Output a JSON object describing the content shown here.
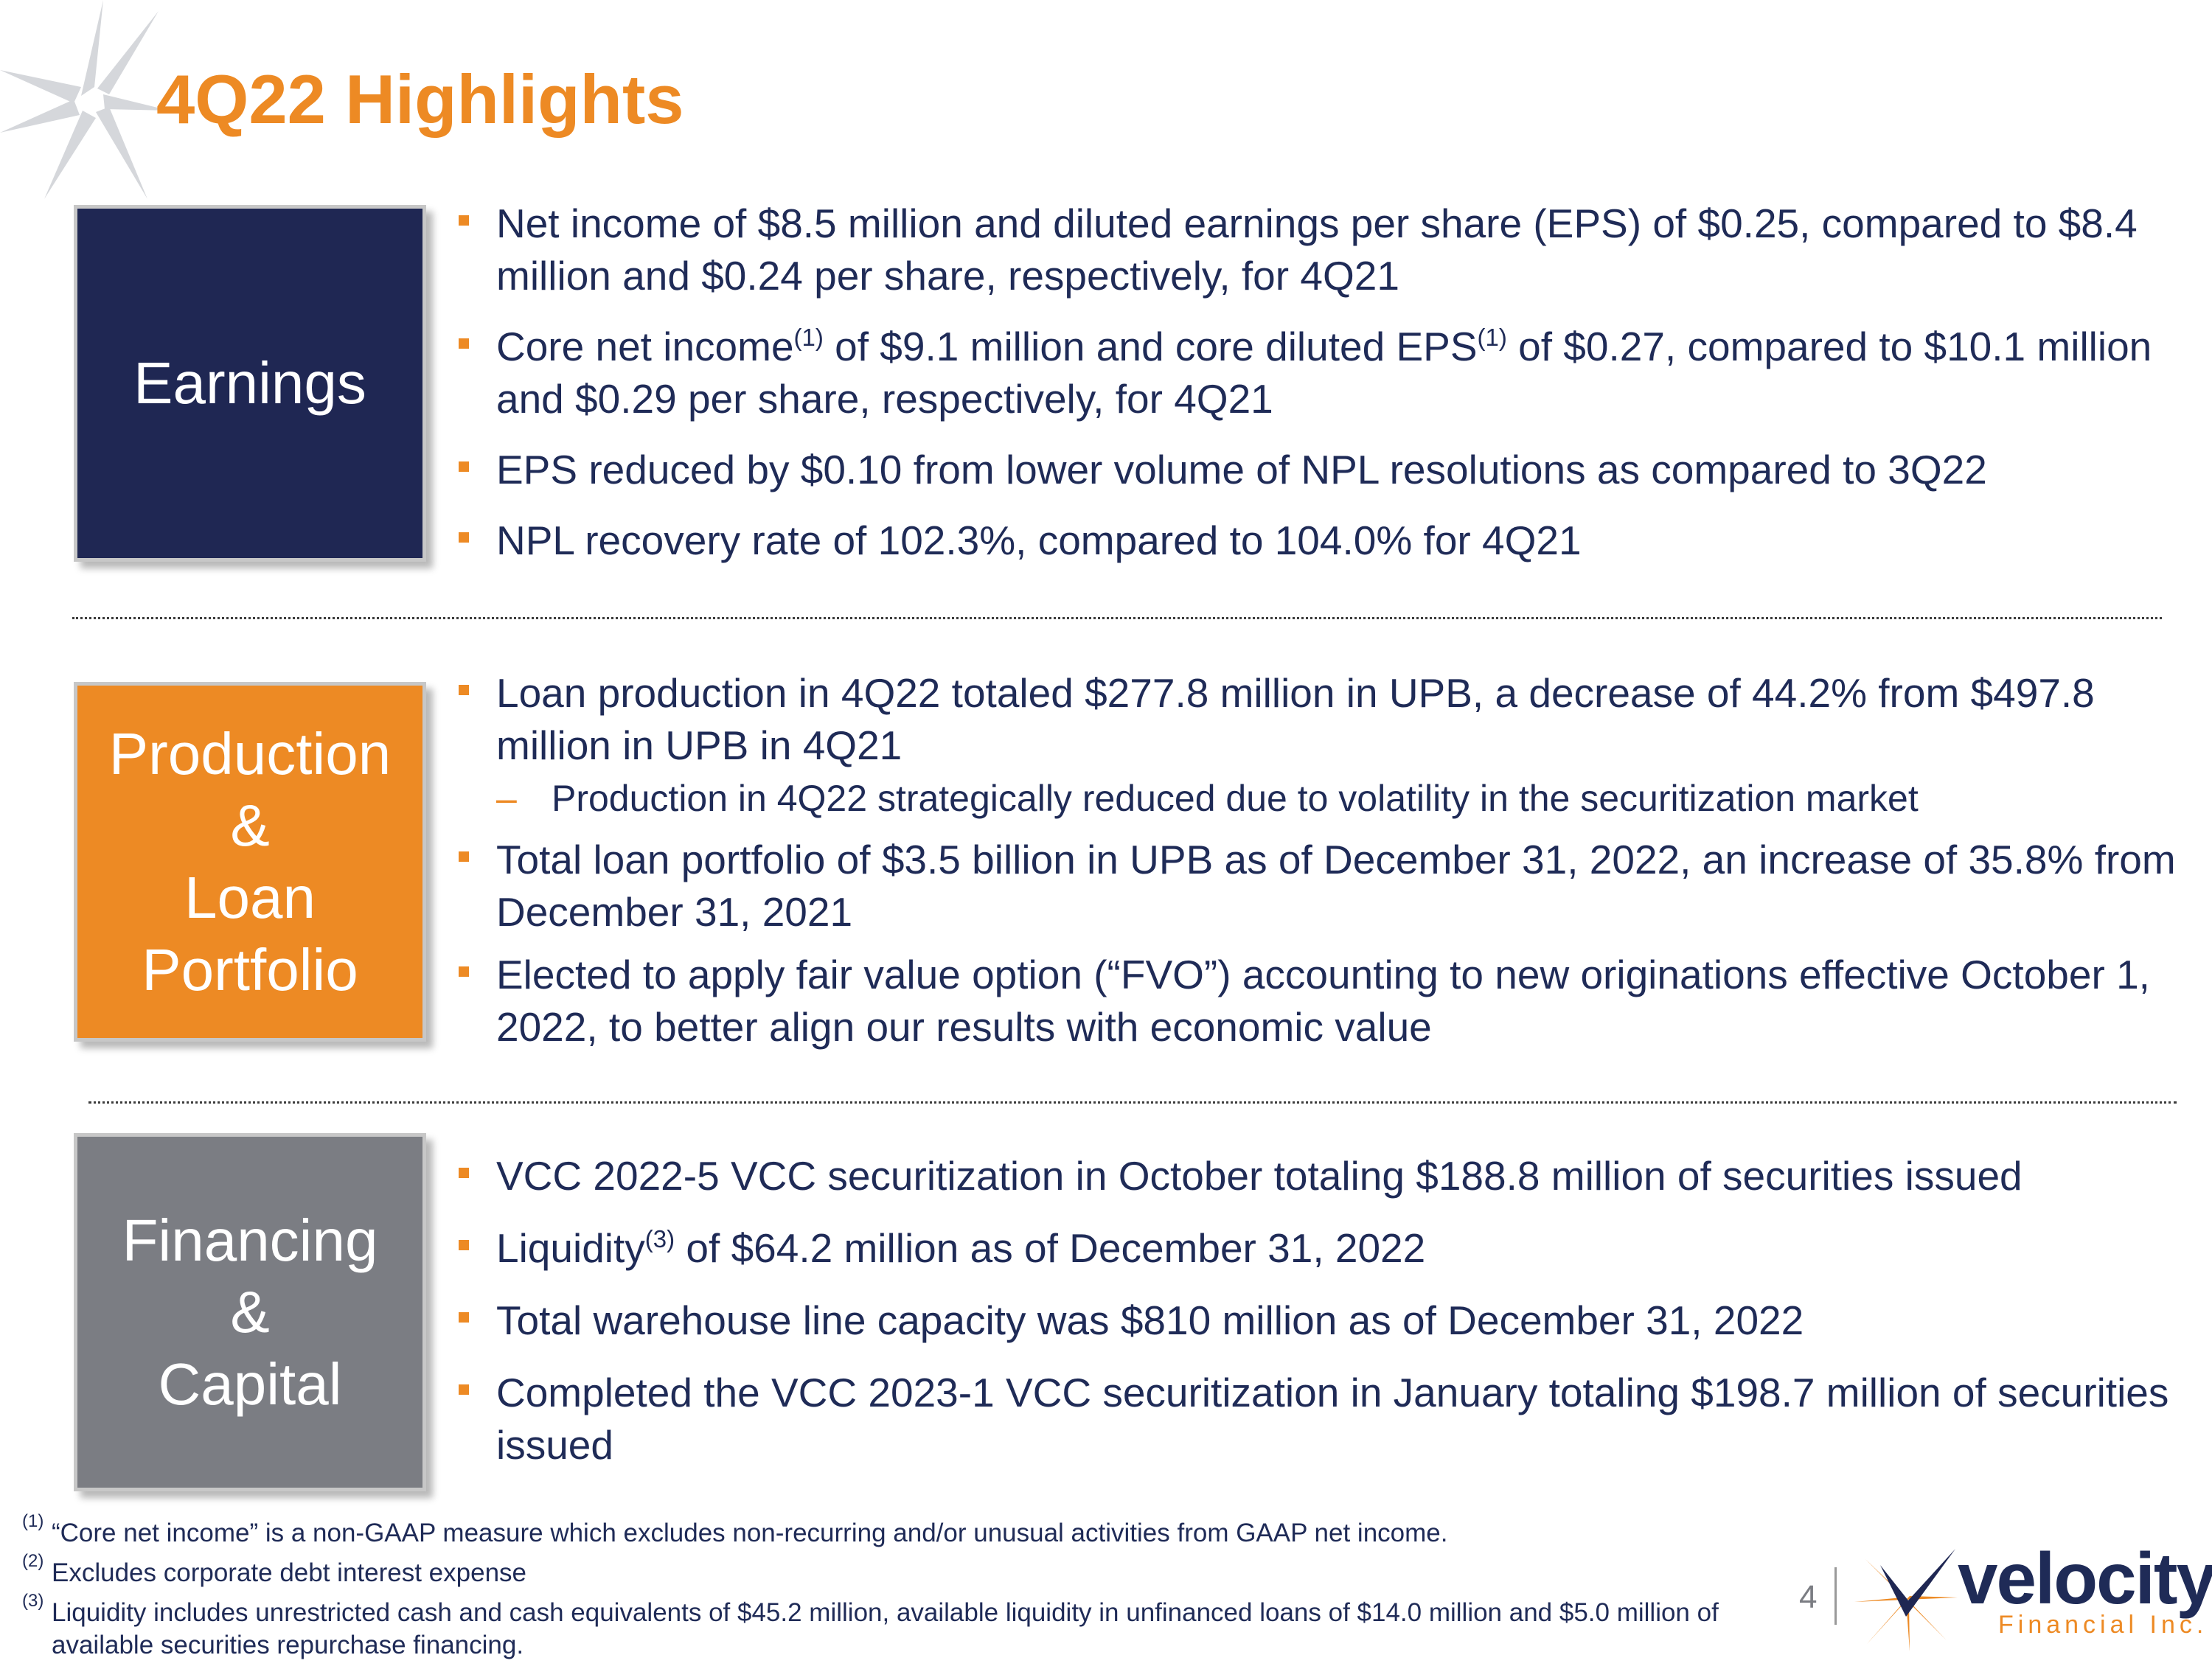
{
  "page": {
    "title": "4Q22 Highlights",
    "page_number": "4"
  },
  "sections": {
    "earnings": {
      "label": "Earnings",
      "bullets": [
        {
          "a": "Net income of $8.5 million and diluted earnings per share (EPS) of $0.25, compared to $8.4 million and $0.24 per share, respectively, for 4Q21"
        },
        {
          "a": "Core net income",
          "sup1": "(1)",
          "b": " of $9.1 million and core diluted EPS",
          "sup2": "(1)",
          "c": " of $0.27, compared to $10.1 million and $0.29 per share, respectively, for 4Q21"
        },
        {
          "a": "EPS reduced by $0.10 from lower volume of NPL resolutions as compared to 3Q22"
        },
        {
          "a": "NPL recovery rate of 102.3%, compared to 104.0% for 4Q21"
        }
      ]
    },
    "production": {
      "label": "Production\n&\nLoan\nPortfolio",
      "bullets": [
        {
          "a": "Loan production in 4Q22 totaled $277.8 million in UPB, a decrease of 44.2% from $497.8 million in UPB in 4Q21"
        },
        {
          "sub": "Production in 4Q22 strategically reduced due to volatility in the securitization market"
        },
        {
          "a": "Total loan portfolio of $3.5 billion in UPB as of December 31, 2022, an increase of 35.8% from December 31, 2021"
        },
        {
          "a": "Elected to apply fair value option (“FVO”) accounting to new originations effective October 1, 2022, to better align our results with economic value"
        }
      ]
    },
    "financing": {
      "label": "Financing\n&\nCapital",
      "bullets": [
        {
          "a": "VCC 2022-5 VCC securitization in October totaling $188.8 million of securities issued"
        },
        {
          "a": "Liquidity",
          "sup1": "(3)",
          "b": " of $64.2 million as of December 31, 2022"
        },
        {
          "a": "Total warehouse line capacity was $810 million as of December 31, 2022"
        },
        {
          "a": "Completed the VCC 2023-1 VCC securitization in January totaling $198.7 million of securities issued"
        }
      ]
    }
  },
  "footnotes": [
    {
      "mark": "(1)",
      "text": "“Core net income” is a non-GAAP measure which excludes non-recurring and/or unusual activities from GAAP net income."
    },
    {
      "mark": "(2)",
      "text": "Excludes corporate debt interest expense"
    },
    {
      "mark": "(3)",
      "text": "Liquidity includes unrestricted cash and cash equivalents of $45.2 million, available liquidity in unfinanced loans of $14.0 million and $5.0 million of available securities repurchase financing."
    }
  ],
  "logo": {
    "word": "velocity",
    "sub": "Financial Inc."
  },
  "colors": {
    "navy": "#1f2753",
    "orange": "#ed8a24",
    "gray": "#7b7d83",
    "text": "#1f2b57"
  }
}
